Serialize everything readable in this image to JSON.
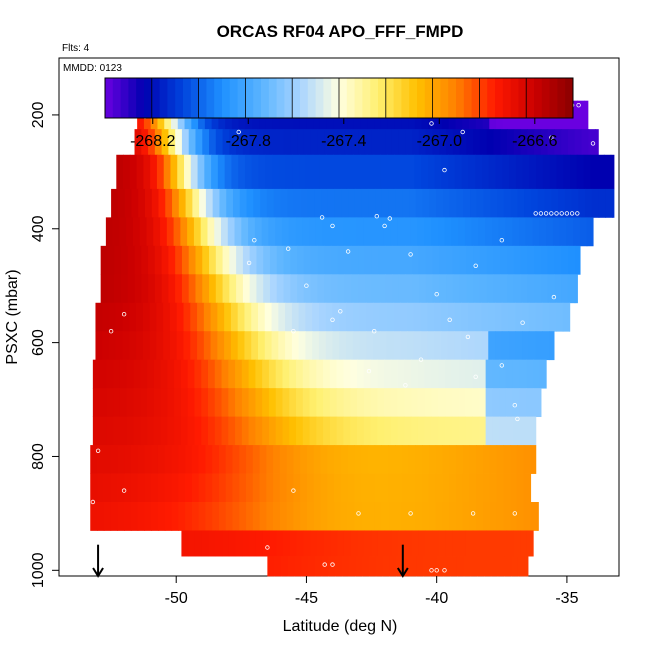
{
  "chart_data": {
    "type": "heatmap",
    "title": "ORCAS RF04 APO_FFF_FMPD",
    "flights_label": "Flts: 4",
    "date_label": "MMDD: 0123",
    "xlabel": "Latitude (deg N)",
    "ylabel": "PSXC (mbar)",
    "xlim": [
      -54.5,
      -33.0
    ],
    "ylim": [
      1010,
      100
    ],
    "x_ticks": [
      -50,
      -45,
      -40,
      -35
    ],
    "x_tick_labels": [
      "-50",
      "-45",
      "-40",
      "-35"
    ],
    "y_ticks": [
      200,
      400,
      600,
      800,
      1000
    ],
    "y_tick_labels": [
      "200",
      "400",
      "600",
      "800",
      "1000"
    ],
    "colorbar": {
      "range": [
        -268.4,
        -266.44
      ],
      "ticks": [
        -268.2,
        -267.8,
        -267.4,
        -267.0,
        -266.6
      ],
      "tick_labels": [
        "-268.2",
        "-267.8",
        "-267.4",
        "-267.0",
        "-266.6"
      ],
      "colors": [
        "#6a00e0",
        "#0000b0",
        "#0044dd",
        "#1e90ff",
        "#5ab4ff",
        "#a8d4ff",
        "#ffffe0",
        "#fff070",
        "#ffc000",
        "#ff8000",
        "#ff1a00",
        "#cc0000",
        "#8b0000"
      ]
    },
    "layers": [
      {
        "p_top": 175,
        "p_bot": 225,
        "x_start": -51.5,
        "x_end": -34.2
      },
      {
        "p_top": 225,
        "p_bot": 270,
        "x_start": -51.6,
        "x_end": -33.8
      },
      {
        "p_top": 270,
        "p_bot": 330,
        "x_start": -52.3,
        "x_end": -33.2
      },
      {
        "p_top": 330,
        "p_bot": 380,
        "x_start": -52.5,
        "x_end": -33.2
      },
      {
        "p_top": 380,
        "p_bot": 430,
        "x_start": -52.7,
        "x_end": -34.0
      },
      {
        "p_top": 430,
        "p_bot": 480,
        "x_start": -52.9,
        "x_end": -34.5
      },
      {
        "p_top": 480,
        "p_bot": 530,
        "x_start": -52.9,
        "x_end": -34.6
      },
      {
        "p_top": 530,
        "p_bot": 580,
        "x_start": -53.1,
        "x_end": -34.9
      },
      {
        "p_top": 580,
        "p_bot": 630,
        "x_start": -53.1,
        "x_end": -35.5
      },
      {
        "p_top": 630,
        "p_bot": 680,
        "x_start": -53.2,
        "x_end": -35.8
      },
      {
        "p_top": 680,
        "p_bot": 730,
        "x_start": -53.2,
        "x_end": -36.0
      },
      {
        "p_top": 730,
        "p_bot": 780,
        "x_start": -53.2,
        "x_end": -36.2
      },
      {
        "p_top": 780,
        "p_bot": 830,
        "x_start": -53.3,
        "x_end": -36.2
      },
      {
        "p_top": 830,
        "p_bot": 880,
        "x_start": -53.3,
        "x_end": -36.4
      },
      {
        "p_top": 880,
        "p_bot": 930,
        "x_start": -53.3,
        "x_end": -36.1
      },
      {
        "p_top": 930,
        "p_bot": 975,
        "x_start": -49.8,
        "x_end": -36.3
      },
      {
        "p_top": 975,
        "p_bot": 1010,
        "x_start": -46.5,
        "x_end": -36.5
      }
    ],
    "markers": [
      {
        "type": "arrow-down",
        "lat": -53.0,
        "p_from": 955,
        "p_to": 1010
      },
      {
        "type": "arrow-down",
        "lat": -41.3,
        "p_from": 955,
        "p_to": 1010
      }
    ]
  }
}
